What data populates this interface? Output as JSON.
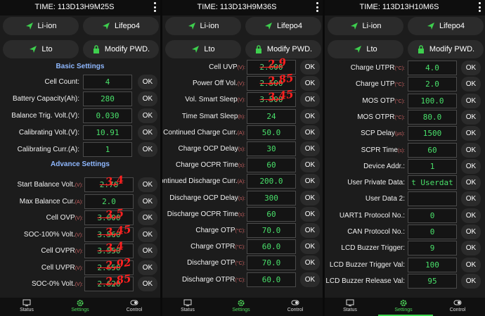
{
  "colors": {
    "accent": "#49e06a",
    "section": "#8fb8ff",
    "handwriting": "#ff2020"
  },
  "nav": {
    "status": "Status",
    "settings": "Settings",
    "control": "Control"
  },
  "buttons": {
    "li_ion": "Li-ion",
    "lifepo4": "Lifepo4",
    "lto": "Lto",
    "modify_pwd": "Modify PWD."
  },
  "ok_label": "OK",
  "panel1": {
    "title": "TIME: 113D13H9M25S",
    "basic_heading": "Basic Settings",
    "advance_heading": "Advance Settings",
    "basic": [
      {
        "label": "Cell Count:",
        "unit": "",
        "value": "4"
      },
      {
        "label": "Battery Capacity(Ah):",
        "unit": "",
        "value": "280"
      },
      {
        "label": "Balance Trig. Volt.(V):",
        "unit": "",
        "value": "0.030"
      },
      {
        "label": "Calibrating Volt.(V):",
        "unit": "",
        "value": "10.91"
      },
      {
        "label": "Calibrating Curr.(A):",
        "unit": "",
        "value": "1"
      }
    ],
    "advance": [
      {
        "label": "Start Balance Volt.",
        "unit": "(V):",
        "value": "2.70",
        "note": "3,4"
      },
      {
        "label": "Max Balance Cur.",
        "unit": "(A):",
        "value": "2.0",
        "note": ""
      },
      {
        "label": "Cell OVP",
        "unit": "(V):",
        "value": "3.600",
        "note": "3,5"
      },
      {
        "label": "SOC-100% Volt.",
        "unit": "(V):",
        "value": "3.560",
        "note": "3,45"
      },
      {
        "label": "Cell OVPR",
        "unit": "(V):",
        "value": "3.550",
        "note": "3,4"
      },
      {
        "label": "Cell UVPR",
        "unit": "(V):",
        "value": "2.650",
        "note": "2,92"
      },
      {
        "label": "SOC-0% Volt.",
        "unit": "(V):",
        "value": "2.620",
        "note": "2,85"
      }
    ]
  },
  "panel2": {
    "title": "TIME: 113D13H9M36S",
    "rows": [
      {
        "label": "Cell UVP",
        "unit": "(V):",
        "value": "2.600",
        "note": "2,9"
      },
      {
        "label": "Power Off Vol.",
        "unit": "(V):",
        "value": "2.500",
        "note": "2,85"
      },
      {
        "label": "Vol. Smart Sleep",
        "unit": "(V):",
        "value": "3.500",
        "note": "3,45"
      },
      {
        "label": "Time Smart Sleep",
        "unit": "(h):",
        "value": "24",
        "note": ""
      },
      {
        "label": "Continued Charge Curr.",
        "unit": "(A):",
        "value": "50.0",
        "note": ""
      },
      {
        "label": "Charge OCP Delay",
        "unit": "(s):",
        "value": "30",
        "note": ""
      },
      {
        "label": "Charge OCPR Time",
        "unit": "(s):",
        "value": "60",
        "note": ""
      },
      {
        "label": "Continued Discharge Curr.",
        "unit": "(A):",
        "value": "200.0",
        "note": ""
      },
      {
        "label": "Discharge OCP Delay",
        "unit": "(s):",
        "value": "300",
        "note": ""
      },
      {
        "label": "Discharge OCPR Time",
        "unit": "(s):",
        "value": "60",
        "note": ""
      },
      {
        "label": "Charge OTP",
        "unit": "(°C):",
        "value": "70.0",
        "note": ""
      },
      {
        "label": "Charge OTPR",
        "unit": "(°C):",
        "value": "60.0",
        "note": ""
      },
      {
        "label": "Discharge OTP",
        "unit": "(°C):",
        "value": "70.0",
        "note": ""
      },
      {
        "label": "Discharge OTPR",
        "unit": "(°C):",
        "value": "60.0",
        "note": ""
      }
    ]
  },
  "panel3": {
    "title": "TIME: 113D13H10M6S",
    "rows": [
      {
        "label": "Charge UTPR",
        "unit": "(°C):",
        "value": "4.0"
      },
      {
        "label": "Charge UTP",
        "unit": "(°C):",
        "value": "2.0"
      },
      {
        "label": "MOS OTP",
        "unit": "(°C):",
        "value": "100.0"
      },
      {
        "label": "MOS OTPR",
        "unit": "(°C):",
        "value": "80.0"
      },
      {
        "label": "SCP Delay",
        "unit": "(μs):",
        "value": "1500"
      },
      {
        "label": "SCPR Time",
        "unit": "(s):",
        "value": "60"
      },
      {
        "label": "Device Addr.:",
        "unit": "",
        "value": "1"
      },
      {
        "label": "User Private Data:",
        "unit": "",
        "value": "t Userdat"
      },
      {
        "label": "User Data 2:",
        "unit": "",
        "value": ""
      },
      {
        "label": "UART1 Protocol No.:",
        "unit": "",
        "value": "0"
      },
      {
        "label": "CAN Protocol No.:",
        "unit": "",
        "value": "0"
      },
      {
        "label": "LCD Buzzer Trigger:",
        "unit": "",
        "value": "9"
      },
      {
        "label": "LCD Buzzer Trigger Val:",
        "unit": "",
        "value": "100"
      },
      {
        "label": "LCD Buzzer Release Val:",
        "unit": "",
        "value": "95"
      }
    ]
  }
}
